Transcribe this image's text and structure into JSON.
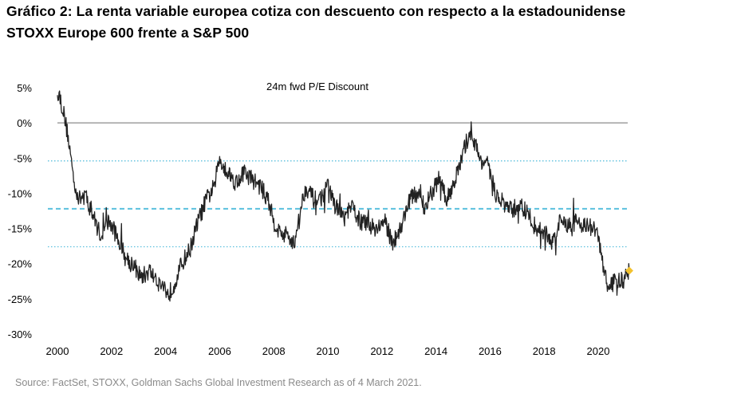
{
  "title_line1": "Gráfico 2: La renta variable europea cotiza con descuento con respecto a la estadounidense",
  "title_line2": "STOXX Europe 600 frente a S&P 500",
  "source": "Source: FactSet, STOXX, Goldman Sachs Global Investment Research as of 4 March 2021.",
  "chart_data": {
    "type": "line",
    "title": "24m fwd P/E Discount",
    "xlabel": "",
    "ylabel": "",
    "xlim": [
      2000,
      2021.5
    ],
    "ylim": [
      -30,
      5
    ],
    "x_ticks": [
      2000,
      2002,
      2004,
      2006,
      2008,
      2010,
      2012,
      2014,
      2016,
      2018,
      2020
    ],
    "x_tick_labels": [
      "2000",
      "2002",
      "2004",
      "2006",
      "2008",
      "2010",
      "2012",
      "2014",
      "2016",
      "2018",
      "2020"
    ],
    "y_ticks": [
      5,
      0,
      -5,
      -10,
      -15,
      -20,
      -25,
      -30
    ],
    "y_tick_labels": [
      "5%",
      "0%",
      "-5%",
      "-10%",
      "-15%",
      "-20%",
      "-25%",
      "-30%"
    ],
    "series": [
      {
        "name": "24m fwd P/E Discount",
        "x": [
          2000.0,
          2000.2,
          2000.4,
          2000.6,
          2000.8,
          2001.0,
          2001.3,
          2001.6,
          2001.9,
          2002.2,
          2002.5,
          2002.8,
          2003.1,
          2003.4,
          2003.7,
          2004.0,
          2004.1,
          2004.3,
          2004.6,
          2004.9,
          2005.2,
          2005.5,
          2005.8,
          2006.0,
          2006.3,
          2006.6,
          2006.9,
          2007.2,
          2007.5,
          2007.8,
          2008.0,
          2008.2,
          2008.5,
          2008.8,
          2009.0,
          2009.2,
          2009.5,
          2009.8,
          2010.0,
          2010.3,
          2010.6,
          2010.9,
          2011.2,
          2011.5,
          2011.8,
          2012.1,
          2012.4,
          2012.7,
          2013.0,
          2013.3,
          2013.6,
          2013.9,
          2014.1,
          2014.4,
          2014.7,
          2014.9,
          2015.1,
          2015.3,
          2015.6,
          2015.9,
          2016.2,
          2016.5,
          2016.8,
          2017.1,
          2017.4,
          2017.7,
          2018.0,
          2018.3,
          2018.6,
          2018.9,
          2019.2,
          2019.5,
          2019.8,
          2020.0,
          2020.2,
          2020.4,
          2020.6,
          2020.9,
          2021.15
        ],
        "y": [
          5.0,
          2.0,
          -2.0,
          -8.0,
          -11.0,
          -10.0,
          -13.0,
          -16.0,
          -14.0,
          -16.0,
          -19.0,
          -20.0,
          -22.0,
          -21.0,
          -22.5,
          -23.5,
          -24.5,
          -23.0,
          -20.0,
          -18.0,
          -14.0,
          -11.0,
          -9.0,
          -5.0,
          -7.0,
          -8.5,
          -7.0,
          -8.0,
          -9.0,
          -11.0,
          -14.0,
          -15.5,
          -16.0,
          -17.0,
          -12.0,
          -9.0,
          -11.0,
          -10.5,
          -9.0,
          -12.0,
          -13.5,
          -12.0,
          -14.0,
          -14.5,
          -15.0,
          -14.0,
          -17.0,
          -15.0,
          -11.0,
          -10.0,
          -12.0,
          -9.5,
          -8.0,
          -11.0,
          -8.0,
          -6.0,
          -3.0,
          -1.0,
          -5.0,
          -6.0,
          -10.0,
          -11.5,
          -12.5,
          -11.5,
          -13.0,
          -15.0,
          -15.5,
          -17.0,
          -14.0,
          -14.5,
          -14.0,
          -14.5,
          -15.0,
          -16.0,
          -21.0,
          -23.5,
          -22.5,
          -22.5,
          -21.0
        ]
      }
    ],
    "reference_lines": [
      {
        "name": "zero",
        "value": 0,
        "style": "solid grey"
      },
      {
        "name": "average",
        "value": -12.2,
        "style": "dashed light blue"
      },
      {
        "name": "upper band",
        "value": -5.4,
        "style": "dotted light blue"
      },
      {
        "name": "lower band",
        "value": -17.6,
        "style": "dotted light blue"
      }
    ],
    "latest_point": {
      "x": 2021.15,
      "y": -21.0,
      "color": "#f2c12e"
    },
    "colors": {
      "line": "#222222",
      "reference": "#5bc0de",
      "zero": "#8c8c8c",
      "marker": "#f2c12e"
    }
  }
}
